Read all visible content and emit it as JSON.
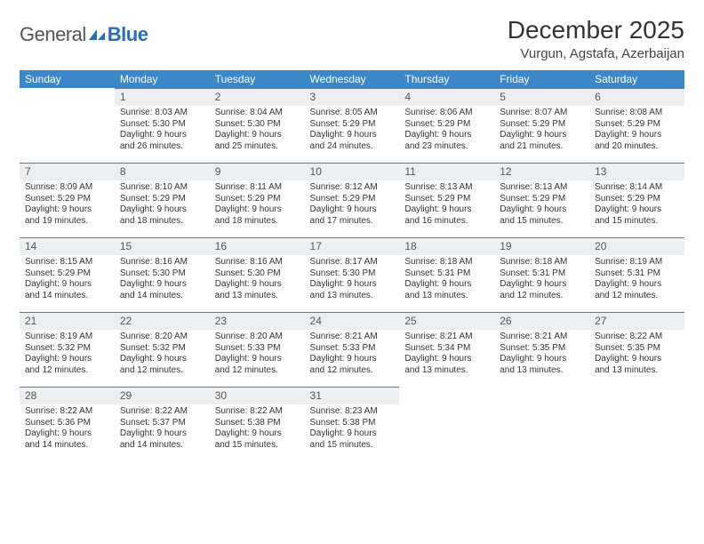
{
  "brand": {
    "general": "General",
    "blue": "Blue"
  },
  "title": "December 2025",
  "location": "Vurgun, Agstafa, Azerbaijan",
  "colors": {
    "header_bg": "#3c87c7",
    "header_text": "#ffffff",
    "daynum_bg": "#eceff1",
    "daynum_border": "#3c87c7",
    "body_text": "#333333",
    "logo_blue": "#2a6db5",
    "page_bg": "#ffffff"
  },
  "typography": {
    "body_fontsize": 10,
    "daynum_fontsize": 12,
    "title_fontsize": 28
  },
  "day_labels": [
    "Sunday",
    "Monday",
    "Tuesday",
    "Wednesday",
    "Thursday",
    "Friday",
    "Saturday"
  ],
  "weeks": [
    [
      null,
      {
        "n": "1",
        "sr": "Sunrise: 8:03 AM",
        "ss": "Sunset: 5:30 PM",
        "d1": "Daylight: 9 hours",
        "d2": "and 26 minutes."
      },
      {
        "n": "2",
        "sr": "Sunrise: 8:04 AM",
        "ss": "Sunset: 5:30 PM",
        "d1": "Daylight: 9 hours",
        "d2": "and 25 minutes."
      },
      {
        "n": "3",
        "sr": "Sunrise: 8:05 AM",
        "ss": "Sunset: 5:29 PM",
        "d1": "Daylight: 9 hours",
        "d2": "and 24 minutes."
      },
      {
        "n": "4",
        "sr": "Sunrise: 8:06 AM",
        "ss": "Sunset: 5:29 PM",
        "d1": "Daylight: 9 hours",
        "d2": "and 23 minutes."
      },
      {
        "n": "5",
        "sr": "Sunrise: 8:07 AM",
        "ss": "Sunset: 5:29 PM",
        "d1": "Daylight: 9 hours",
        "d2": "and 21 minutes."
      },
      {
        "n": "6",
        "sr": "Sunrise: 8:08 AM",
        "ss": "Sunset: 5:29 PM",
        "d1": "Daylight: 9 hours",
        "d2": "and 20 minutes."
      }
    ],
    [
      {
        "n": "7",
        "sr": "Sunrise: 8:09 AM",
        "ss": "Sunset: 5:29 PM",
        "d1": "Daylight: 9 hours",
        "d2": "and 19 minutes."
      },
      {
        "n": "8",
        "sr": "Sunrise: 8:10 AM",
        "ss": "Sunset: 5:29 PM",
        "d1": "Daylight: 9 hours",
        "d2": "and 18 minutes."
      },
      {
        "n": "9",
        "sr": "Sunrise: 8:11 AM",
        "ss": "Sunset: 5:29 PM",
        "d1": "Daylight: 9 hours",
        "d2": "and 18 minutes."
      },
      {
        "n": "10",
        "sr": "Sunrise: 8:12 AM",
        "ss": "Sunset: 5:29 PM",
        "d1": "Daylight: 9 hours",
        "d2": "and 17 minutes."
      },
      {
        "n": "11",
        "sr": "Sunrise: 8:13 AM",
        "ss": "Sunset: 5:29 PM",
        "d1": "Daylight: 9 hours",
        "d2": "and 16 minutes."
      },
      {
        "n": "12",
        "sr": "Sunrise: 8:13 AM",
        "ss": "Sunset: 5:29 PM",
        "d1": "Daylight: 9 hours",
        "d2": "and 15 minutes."
      },
      {
        "n": "13",
        "sr": "Sunrise: 8:14 AM",
        "ss": "Sunset: 5:29 PM",
        "d1": "Daylight: 9 hours",
        "d2": "and 15 minutes."
      }
    ],
    [
      {
        "n": "14",
        "sr": "Sunrise: 8:15 AM",
        "ss": "Sunset: 5:29 PM",
        "d1": "Daylight: 9 hours",
        "d2": "and 14 minutes."
      },
      {
        "n": "15",
        "sr": "Sunrise: 8:16 AM",
        "ss": "Sunset: 5:30 PM",
        "d1": "Daylight: 9 hours",
        "d2": "and 14 minutes."
      },
      {
        "n": "16",
        "sr": "Sunrise: 8:16 AM",
        "ss": "Sunset: 5:30 PM",
        "d1": "Daylight: 9 hours",
        "d2": "and 13 minutes."
      },
      {
        "n": "17",
        "sr": "Sunrise: 8:17 AM",
        "ss": "Sunset: 5:30 PM",
        "d1": "Daylight: 9 hours",
        "d2": "and 13 minutes."
      },
      {
        "n": "18",
        "sr": "Sunrise: 8:18 AM",
        "ss": "Sunset: 5:31 PM",
        "d1": "Daylight: 9 hours",
        "d2": "and 13 minutes."
      },
      {
        "n": "19",
        "sr": "Sunrise: 8:18 AM",
        "ss": "Sunset: 5:31 PM",
        "d1": "Daylight: 9 hours",
        "d2": "and 12 minutes."
      },
      {
        "n": "20",
        "sr": "Sunrise: 8:19 AM",
        "ss": "Sunset: 5:31 PM",
        "d1": "Daylight: 9 hours",
        "d2": "and 12 minutes."
      }
    ],
    [
      {
        "n": "21",
        "sr": "Sunrise: 8:19 AM",
        "ss": "Sunset: 5:32 PM",
        "d1": "Daylight: 9 hours",
        "d2": "and 12 minutes."
      },
      {
        "n": "22",
        "sr": "Sunrise: 8:20 AM",
        "ss": "Sunset: 5:32 PM",
        "d1": "Daylight: 9 hours",
        "d2": "and 12 minutes."
      },
      {
        "n": "23",
        "sr": "Sunrise: 8:20 AM",
        "ss": "Sunset: 5:33 PM",
        "d1": "Daylight: 9 hours",
        "d2": "and 12 minutes."
      },
      {
        "n": "24",
        "sr": "Sunrise: 8:21 AM",
        "ss": "Sunset: 5:33 PM",
        "d1": "Daylight: 9 hours",
        "d2": "and 12 minutes."
      },
      {
        "n": "25",
        "sr": "Sunrise: 8:21 AM",
        "ss": "Sunset: 5:34 PM",
        "d1": "Daylight: 9 hours",
        "d2": "and 13 minutes."
      },
      {
        "n": "26",
        "sr": "Sunrise: 8:21 AM",
        "ss": "Sunset: 5:35 PM",
        "d1": "Daylight: 9 hours",
        "d2": "and 13 minutes."
      },
      {
        "n": "27",
        "sr": "Sunrise: 8:22 AM",
        "ss": "Sunset: 5:35 PM",
        "d1": "Daylight: 9 hours",
        "d2": "and 13 minutes."
      }
    ],
    [
      {
        "n": "28",
        "sr": "Sunrise: 8:22 AM",
        "ss": "Sunset: 5:36 PM",
        "d1": "Daylight: 9 hours",
        "d2": "and 14 minutes."
      },
      {
        "n": "29",
        "sr": "Sunrise: 8:22 AM",
        "ss": "Sunset: 5:37 PM",
        "d1": "Daylight: 9 hours",
        "d2": "and 14 minutes."
      },
      {
        "n": "30",
        "sr": "Sunrise: 8:22 AM",
        "ss": "Sunset: 5:38 PM",
        "d1": "Daylight: 9 hours",
        "d2": "and 15 minutes."
      },
      {
        "n": "31",
        "sr": "Sunrise: 8:23 AM",
        "ss": "Sunset: 5:38 PM",
        "d1": "Daylight: 9 hours",
        "d2": "and 15 minutes."
      },
      null,
      null,
      null
    ]
  ]
}
